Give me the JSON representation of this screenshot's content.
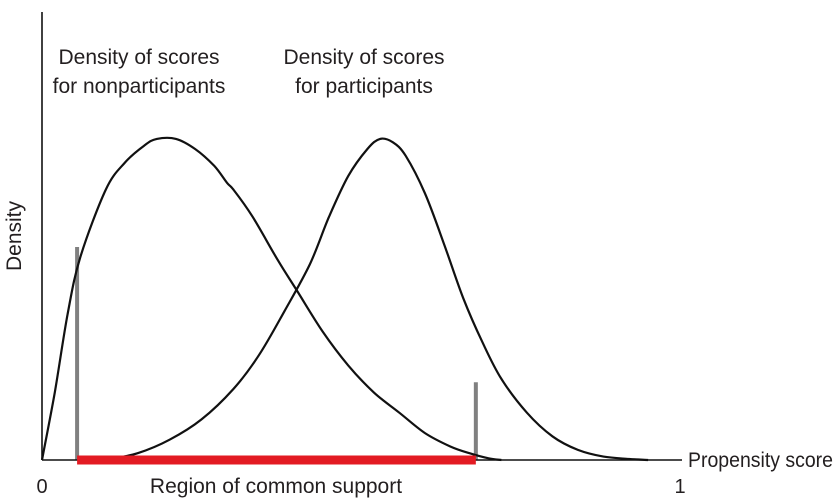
{
  "chart_data": {
    "type": "line",
    "xlabel": "Propensity score",
    "ylabel": "Density",
    "xlim": [
      0,
      1
    ],
    "ylim": [
      0,
      1
    ],
    "x_ticks": [
      {
        "value": 0,
        "label": "0"
      },
      {
        "value": 1,
        "label": "1"
      }
    ],
    "grid": false,
    "legend": "none",
    "series": [
      {
        "name": "Density of scores for nonparticipants",
        "points": [
          [
            0,
            0
          ],
          [
            0.02,
            0.2
          ],
          [
            0.04,
            0.43
          ],
          [
            0.06,
            0.6
          ],
          [
            0.1,
            0.8
          ],
          [
            0.13,
            0.88
          ],
          [
            0.16,
            0.93
          ],
          [
            0.18,
            0.95
          ],
          [
            0.21,
            0.95
          ],
          [
            0.24,
            0.92
          ],
          [
            0.27,
            0.87
          ],
          [
            0.29,
            0.82
          ],
          [
            0.3,
            0.8
          ],
          [
            0.33,
            0.72
          ],
          [
            0.37,
            0.59
          ],
          [
            0.4,
            0.5
          ],
          [
            0.44,
            0.38
          ],
          [
            0.48,
            0.28
          ],
          [
            0.52,
            0.2
          ],
          [
            0.56,
            0.14
          ],
          [
            0.6,
            0.08
          ],
          [
            0.64,
            0.04
          ],
          [
            0.67,
            0.02
          ],
          [
            0.7,
            0.005
          ],
          [
            0.72,
            0
          ]
        ]
      },
      {
        "name": "Density of scores for participants",
        "points": [
          [
            0.08,
            0
          ],
          [
            0.11,
            0.005
          ],
          [
            0.15,
            0.02
          ],
          [
            0.2,
            0.06
          ],
          [
            0.25,
            0.12
          ],
          [
            0.3,
            0.21
          ],
          [
            0.34,
            0.31
          ],
          [
            0.38,
            0.44
          ],
          [
            0.42,
            0.58
          ],
          [
            0.45,
            0.72
          ],
          [
            0.48,
            0.84
          ],
          [
            0.51,
            0.92
          ],
          [
            0.53,
            0.95
          ],
          [
            0.55,
            0.94
          ],
          [
            0.57,
            0.9
          ],
          [
            0.6,
            0.79
          ],
          [
            0.63,
            0.64
          ],
          [
            0.66,
            0.48
          ],
          [
            0.69,
            0.35
          ],
          [
            0.72,
            0.24
          ],
          [
            0.76,
            0.14
          ],
          [
            0.8,
            0.07
          ],
          [
            0.84,
            0.03
          ],
          [
            0.88,
            0.01
          ],
          [
            0.92,
            0.003
          ],
          [
            0.95,
            0
          ]
        ]
      }
    ],
    "curve_labels": [
      {
        "series": 0,
        "lines": [
          "Density of scores",
          "for nonparticipants"
        ]
      },
      {
        "series": 1,
        "lines": [
          "Density of scores",
          "for participants"
        ]
      }
    ],
    "common_support": {
      "label": "Region of common support",
      "x_start": 0.055,
      "x_end": 0.68,
      "color": "#e31b23",
      "boundary_color": "#808080",
      "boundary_heights": [
        0.63,
        0.23
      ]
    }
  }
}
